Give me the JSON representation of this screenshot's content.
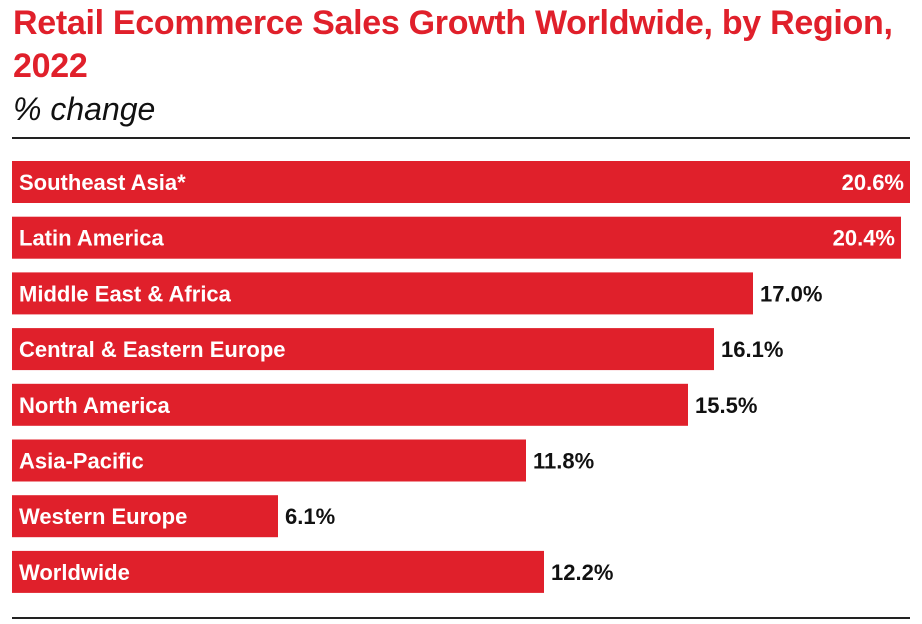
{
  "chart_data": {
    "type": "bar",
    "orientation": "horizontal",
    "title": "Retail Ecommerce Sales Growth Worldwide, by Region, 2022",
    "subtitle": "% change",
    "categories": [
      "Southeast Asia*",
      "Latin America",
      "Middle East & Africa",
      "Central & Eastern Europe",
      "North America",
      "Asia-Pacific",
      "Western Europe",
      "Worldwide"
    ],
    "values": [
      20.6,
      20.4,
      17.0,
      16.1,
      15.5,
      11.8,
      6.1,
      12.2
    ],
    "value_labels": [
      "20.6%",
      "20.4%",
      "17.0%",
      "16.1%",
      "15.5%",
      "11.8%",
      "6.1%",
      "12.2%"
    ],
    "xlim": [
      0,
      20.6
    ],
    "grid": false,
    "legend": "none",
    "colors": {
      "bar": "#e0202b",
      "title": "#e0202b",
      "text": "#111111",
      "label_inside": "#ffffff"
    }
  }
}
